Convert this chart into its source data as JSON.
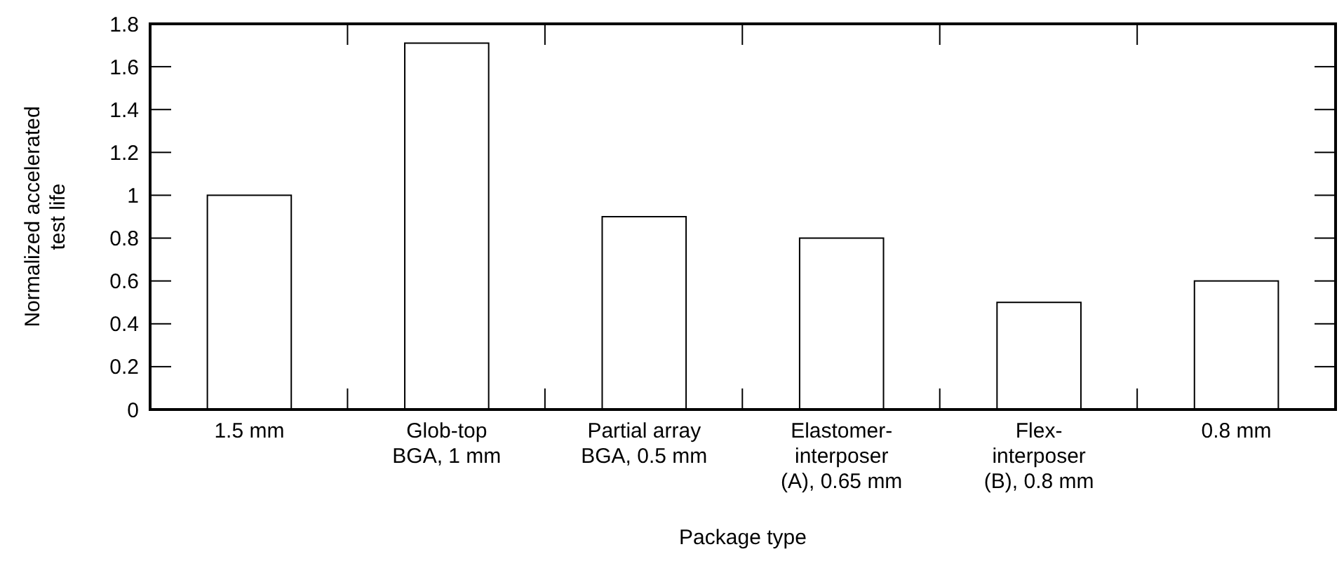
{
  "chart_data": {
    "type": "bar",
    "xlabel": "Package type",
    "ylabel": "Normalized accelerated test life",
    "categories": [
      "1.5 mm",
      "Glob-top\nBGA, 1 mm",
      "Partial array\nBGA, 0.5 mm",
      "Elastomer-\ninterposer\n(A), 0.65 mm",
      "Flex-\ninterposer\n(B), 0.8 mm",
      "0.8 mm"
    ],
    "values": [
      1.0,
      1.71,
      0.9,
      0.8,
      0.5,
      0.6
    ],
    "color": "#ffffff",
    "ylim": [
      0,
      1.8
    ],
    "yticks": [
      0,
      0.2,
      0.4,
      0.6,
      0.8,
      1,
      1.2,
      1.4,
      1.6,
      1.8
    ],
    "grid": false
  }
}
